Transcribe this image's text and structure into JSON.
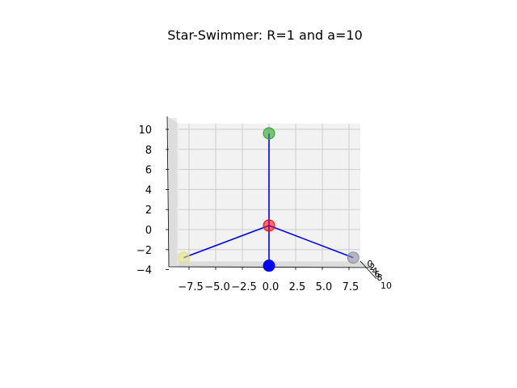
{
  "chart_data": {
    "type": "scatter",
    "projection": "3d",
    "title": "Star-Swimmer: R=1 and a=10",
    "grid": true,
    "xticks": [
      "−7.5",
      "−5.0",
      "−2.5",
      "0.0",
      "2.5",
      "5.0",
      "7.5"
    ],
    "xtick_values": [
      -7.5,
      -5.0,
      -2.5,
      0.0,
      2.5,
      5.0,
      7.5
    ],
    "zticks": [
      "−4",
      "−2",
      "0",
      "2",
      "4",
      "6",
      "8",
      "10"
    ],
    "ztick_values": [
      -4,
      -2,
      0,
      2,
      4,
      6,
      8,
      10
    ],
    "yticks_visible": [
      "0",
      "2",
      "4",
      "6",
      "8",
      "10"
    ],
    "xlim": [
      -9.8,
      9.2
    ],
    "zlim": [
      -4.1,
      10.1
    ],
    "center": {
      "x": 0.0,
      "z": 0.4,
      "color": "#ff0000"
    },
    "spheres": [
      {
        "x": 0.0,
        "z": 9.6,
        "color": "#2ca02c"
      },
      {
        "x": -8.0,
        "z": -2.8,
        "color": "#e0e080"
      },
      {
        "x": 7.9,
        "z": -2.8,
        "color": "#8890a0"
      },
      {
        "x": 0.0,
        "z": -3.6,
        "color": "#0000ff"
      }
    ],
    "arm_color": "#0000ff"
  }
}
